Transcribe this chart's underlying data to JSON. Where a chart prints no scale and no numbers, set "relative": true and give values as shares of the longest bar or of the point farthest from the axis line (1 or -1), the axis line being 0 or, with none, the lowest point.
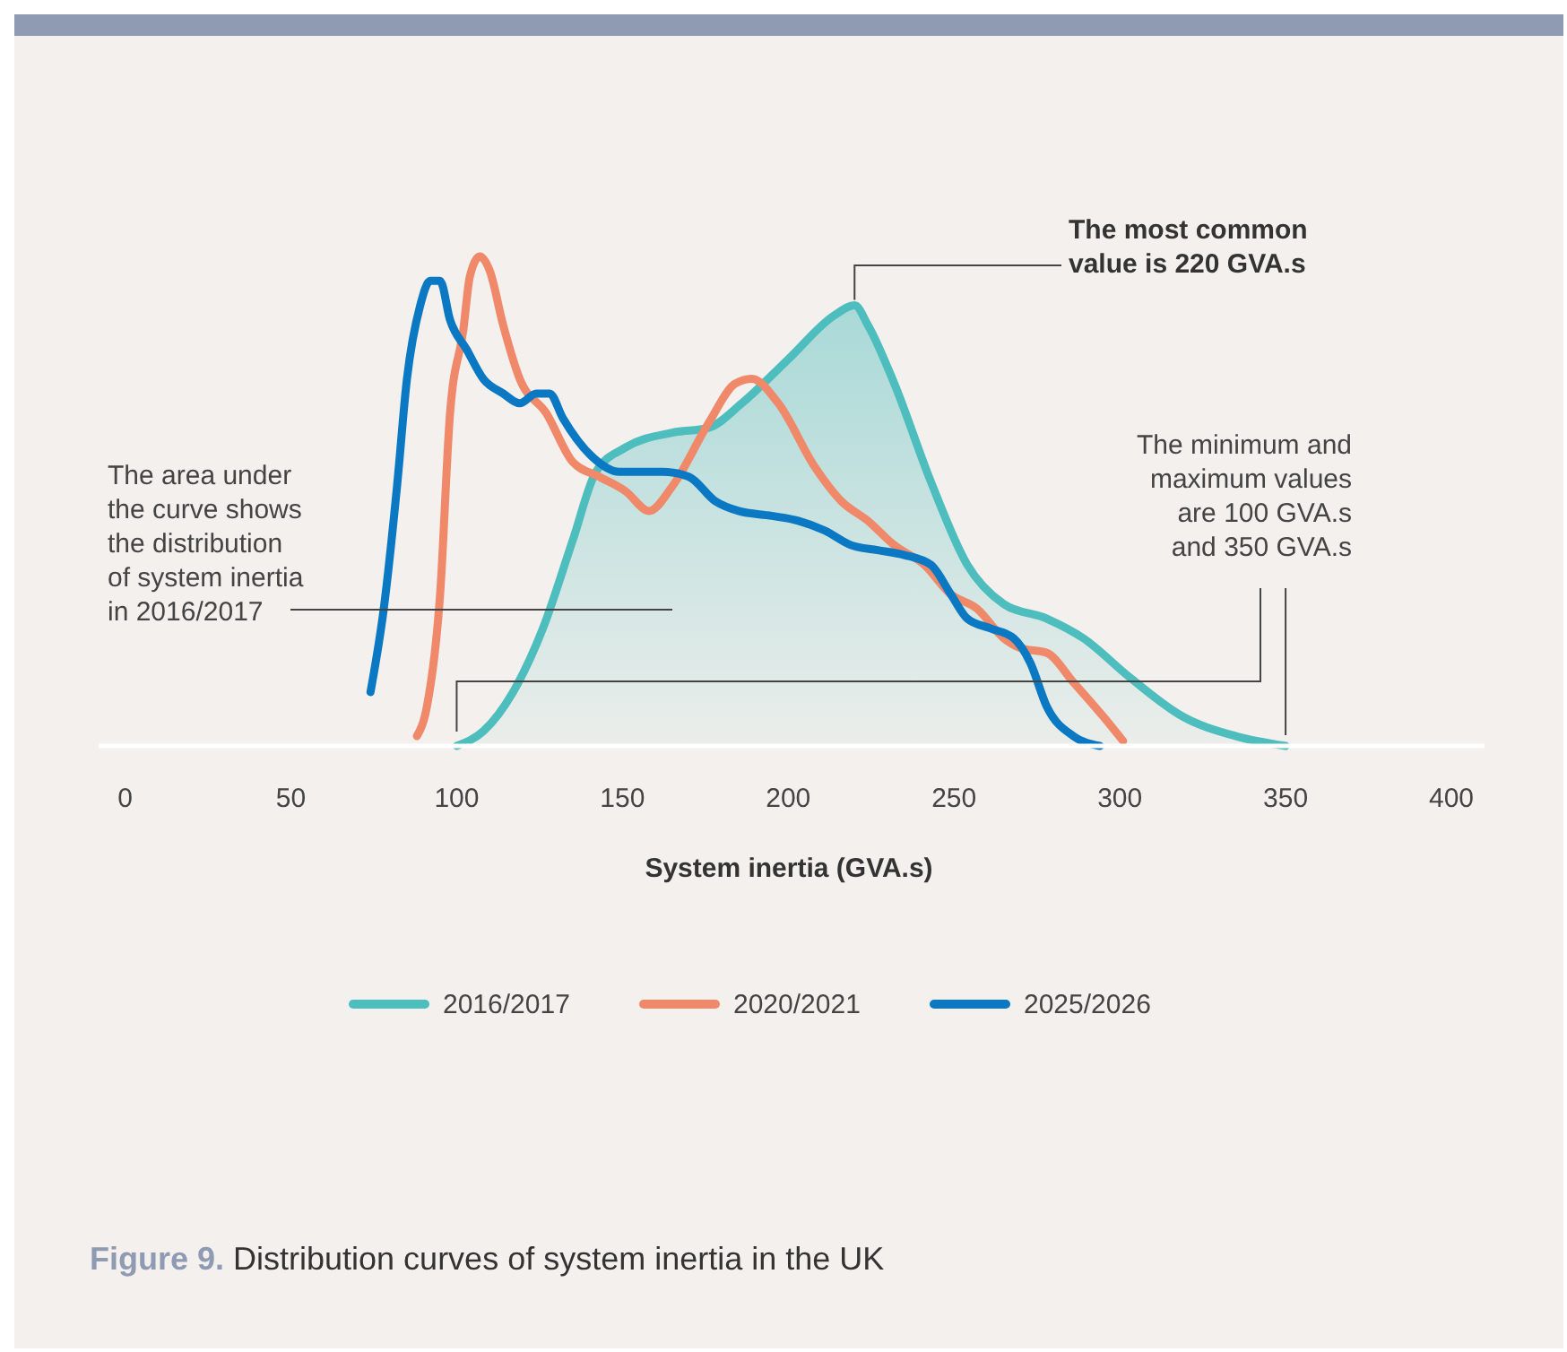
{
  "chart_data": {
    "type": "line",
    "title": "Figure 9. Distribution curves of system inertia in the UK",
    "xlabel": "System inertia (GVA.s)",
    "relative": true,
    "xlim": [
      -8,
      410
    ],
    "xticks": [
      0,
      50,
      100,
      150,
      200,
      250,
      300,
      350,
      400
    ],
    "legend": "bottom",
    "grid": false,
    "annotations": [
      {
        "text": "The most common value is 220 GVA.s",
        "x": 220,
        "y": 0.9
      },
      "The minimum and maximum values are 100 GVA.s and 350 GVA.s",
      "The area under the curve shows the distribution of system inertia in 2016/2017"
    ],
    "series": [
      {
        "name": "2016/2017",
        "type": "area",
        "color": "#4dbdbd",
        "x": [
          100,
          108,
          117,
          126,
          135,
          142,
          151,
          165,
          176,
          186,
          200,
          214,
          220,
          224,
          232,
          243,
          254,
          265,
          278,
          289,
          303,
          319,
          335,
          350
        ],
        "values": [
          0,
          0.03,
          0.11,
          0.24,
          0.42,
          0.56,
          0.61,
          0.64,
          0.65,
          0.7,
          0.79,
          0.88,
          0.9,
          0.86,
          0.74,
          0.54,
          0.37,
          0.29,
          0.26,
          0.22,
          0.14,
          0.06,
          0.02,
          0
        ]
      },
      {
        "name": "2020/2021",
        "color": "#f0896a",
        "x": [
          88,
          91,
          95,
          98,
          102,
          104,
          107,
          110,
          114,
          119,
          127,
          135,
          143,
          151,
          158,
          165,
          176,
          184,
          189,
          197,
          208,
          216,
          224,
          232,
          241,
          249,
          257,
          265,
          270,
          278,
          286,
          295,
          301
        ],
        "values": [
          0.02,
          0.08,
          0.31,
          0.68,
          0.85,
          0.96,
          1,
          0.97,
          0.86,
          0.75,
          0.68,
          0.58,
          0.55,
          0.52,
          0.48,
          0.53,
          0.66,
          0.74,
          0.75,
          0.7,
          0.57,
          0.5,
          0.46,
          0.41,
          0.37,
          0.31,
          0.28,
          0.22,
          0.2,
          0.19,
          0.13,
          0.06,
          0.01
        ]
      },
      {
        "name": "2025/2026",
        "color": "#0a78c2",
        "x": [
          74,
          78,
          82,
          85,
          89,
          92,
          95,
          98,
          103,
          108,
          114,
          119,
          124,
          128,
          132,
          141,
          149,
          162,
          170,
          178,
          185,
          195,
          203,
          211,
          219,
          227,
          235,
          243,
          249,
          254,
          261,
          268,
          273,
          278,
          286,
          294
        ],
        "values": [
          0.11,
          0.28,
          0.53,
          0.75,
          0.9,
          0.95,
          0.95,
          0.87,
          0.81,
          0.75,
          0.72,
          0.7,
          0.72,
          0.72,
          0.67,
          0.59,
          0.56,
          0.56,
          0.55,
          0.5,
          0.48,
          0.47,
          0.46,
          0.44,
          0.41,
          0.4,
          0.39,
          0.37,
          0.31,
          0.26,
          0.24,
          0.22,
          0.17,
          0.08,
          0.02,
          0
        ]
      }
    ]
  }
}
